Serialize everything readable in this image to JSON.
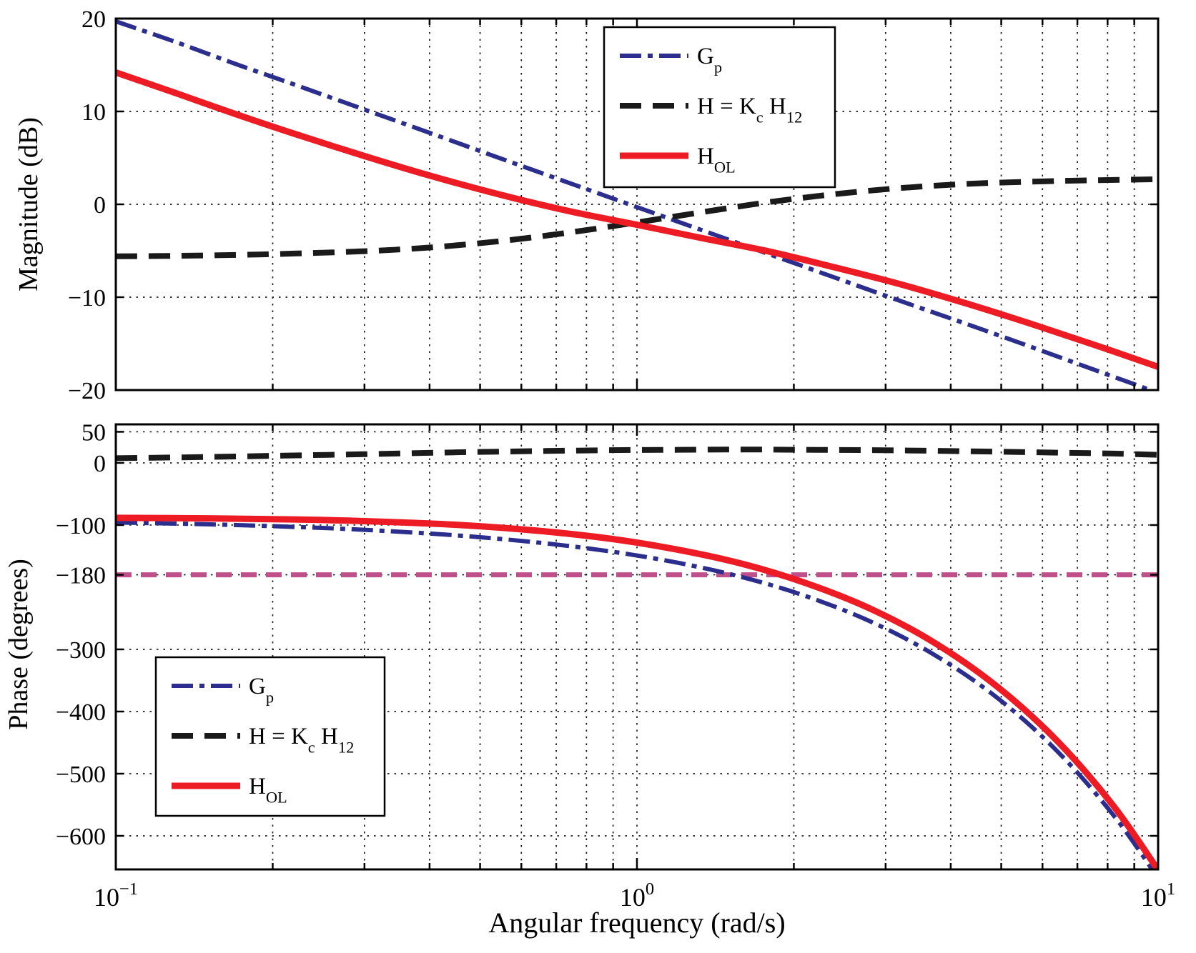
{
  "figure": {
    "bg": "#ffffff",
    "grid_color": "#1a1a1a",
    "axis_color": "#000000",
    "xlabel": "Angular frequency (rad/s)",
    "x_major": [
      {
        "w": 0.1,
        "base": "10",
        "exp": "−1"
      },
      {
        "w": 1,
        "base": "10",
        "exp": "0"
      },
      {
        "w": 10,
        "base": "10",
        "exp": "1"
      }
    ],
    "x_minor": [
      0.2,
      0.3,
      0.4,
      0.5,
      0.6,
      0.7,
      0.8,
      0.9,
      2,
      3,
      4,
      5,
      6,
      7,
      8,
      9
    ],
    "x_grid": [
      0.2,
      0.3,
      0.4,
      0.5,
      0.6,
      0.7,
      0.8,
      0.9,
      1,
      2,
      3,
      4,
      5,
      6,
      7,
      8,
      9
    ]
  },
  "chart_data": [
    {
      "name": "magnitude",
      "type": "line",
      "title": "",
      "xlabel": "",
      "ylabel": "Magnitude (dB)",
      "xscale": "log",
      "xlim": [
        0.1,
        10
      ],
      "ylim": [
        20,
        -20
      ],
      "y_ticks": [
        {
          "v": 20,
          "label": "20"
        },
        {
          "v": 10,
          "label": "10"
        },
        {
          "v": 0,
          "label": "0"
        },
        {
          "v": -10,
          "label": "−10"
        },
        {
          "v": -20,
          "label": "−20"
        }
      ],
      "grid_y": [
        10,
        0,
        -10
      ],
      "legend_position": "upper-right-inside",
      "series": [
        {
          "name": "Gp",
          "label": [
            {
              "t": "G"
            },
            {
              "t": "p",
              "sub": true
            }
          ],
          "color": "#2b2e8c",
          "style": "dashdot",
          "width": 6,
          "x": [
            0.1,
            0.13,
            0.17,
            0.22,
            0.3,
            0.4,
            0.55,
            0.75,
            1.0,
            1.35,
            1.8,
            2.4,
            3.2,
            4.3,
            5.8,
            7.7,
            10
          ],
          "y": [
            19.7,
            17.5,
            15.1,
            12.9,
            10.2,
            7.7,
            4.9,
            2.2,
            -0.3,
            -2.9,
            -5.4,
            -7.9,
            -10.4,
            -12.9,
            -15.5,
            -18.0,
            -20.3
          ]
        },
        {
          "name": "H",
          "label": [
            {
              "t": "H = K"
            },
            {
              "t": "c",
              "sub": true
            },
            {
              "t": " H"
            },
            {
              "t": "12",
              "sub": true
            }
          ],
          "color": "#1a1a1a",
          "style": "dashed",
          "width": 8,
          "x": [
            0.1,
            0.13,
            0.17,
            0.22,
            0.3,
            0.4,
            0.55,
            0.75,
            1.0,
            1.35,
            1.8,
            2.4,
            3.2,
            4.3,
            5.8,
            7.7,
            10
          ],
          "y": [
            -5.6,
            -5.55,
            -5.45,
            -5.3,
            -5.05,
            -4.65,
            -3.95,
            -3.0,
            -1.95,
            -0.8,
            0.25,
            1.1,
            1.75,
            2.2,
            2.45,
            2.6,
            2.7
          ]
        },
        {
          "name": "HOL",
          "label": [
            {
              "t": "H"
            },
            {
              "t": "OL",
              "sub": true
            }
          ],
          "color": "#ed1b24",
          "style": "solid",
          "width": 9,
          "x": [
            0.1,
            0.13,
            0.17,
            0.22,
            0.3,
            0.4,
            0.55,
            0.75,
            1.0,
            1.35,
            1.8,
            2.4,
            3.2,
            4.3,
            5.8,
            7.7,
            10
          ],
          "y": [
            14.2,
            12.0,
            9.7,
            7.6,
            5.2,
            3.1,
            1.0,
            -0.8,
            -2.2,
            -3.7,
            -5.1,
            -6.8,
            -8.6,
            -10.7,
            -13.0,
            -15.3,
            -17.5
          ]
        }
      ]
    },
    {
      "name": "phase",
      "type": "line",
      "title": "",
      "xlabel": "Angular frequency (rad/s)",
      "ylabel": "Phase (degrees)",
      "xscale": "log",
      "xlim": [
        0.1,
        10
      ],
      "ylim": [
        62,
        -654
      ],
      "y_ticks": [
        {
          "v": 50,
          "label": "50"
        },
        {
          "v": 0,
          "label": "0"
        },
        {
          "v": -100,
          "label": "−100"
        },
        {
          "v": -180,
          "label": "−180"
        },
        {
          "v": -300,
          "label": "−300"
        },
        {
          "v": -400,
          "label": "−400"
        },
        {
          "v": -500,
          "label": "−500"
        },
        {
          "v": -600,
          "label": "−600"
        }
      ],
      "grid_y": [
        50,
        0,
        -100,
        -180,
        -300,
        -400,
        -500,
        -600
      ],
      "legend_position": "lower-left-inside",
      "annotations": [
        {
          "type": "hline",
          "name": "minus-180-reference-line",
          "value": -180,
          "color": "#c0508c",
          "style": "refdash",
          "width": 7
        }
      ],
      "series": [
        {
          "name": "Gp",
          "label": [
            {
              "t": "G"
            },
            {
              "t": "p",
              "sub": true
            }
          ],
          "color": "#2b2e8c",
          "style": "dashdot",
          "width": 6,
          "x": [
            0.1,
            0.15,
            0.22,
            0.3,
            0.45,
            0.65,
            0.9,
            1.2,
            1.6,
            2.1,
            2.8,
            3.7,
            4.9,
            6.4,
            8.2,
            10
          ],
          "y": [
            -95.9,
            -98.8,
            -103.0,
            -107.7,
            -116.6,
            -128.4,
            -143.1,
            -160.8,
            -184.3,
            -213.8,
            -254.8,
            -307.5,
            -377.2,
            -463.6,
            -566.3,
            -667.9
          ]
        },
        {
          "name": "H",
          "label": [
            {
              "t": "H = K"
            },
            {
              "t": "c",
              "sub": true
            },
            {
              "t": " H"
            },
            {
              "t": "12",
              "sub": true
            }
          ],
          "color": "#1a1a1a",
          "style": "dashed",
          "width": 8,
          "x": [
            0.1,
            0.15,
            0.22,
            0.3,
            0.45,
            0.65,
            0.9,
            1.2,
            1.6,
            2.1,
            2.8,
            3.7,
            4.9,
            6.4,
            8.2,
            10
          ],
          "y": [
            7.5,
            9.5,
            12.0,
            14.0,
            17.0,
            19.0,
            20.5,
            21.0,
            21.5,
            21.0,
            20.5,
            19.5,
            18.0,
            16.5,
            15.0,
            13.0
          ]
        },
        {
          "name": "HOL",
          "label": [
            {
              "t": "H"
            },
            {
              "t": "OL",
              "sub": true
            }
          ],
          "color": "#ed1b24",
          "style": "solid",
          "width": 9,
          "x": [
            0.1,
            0.15,
            0.22,
            0.3,
            0.45,
            0.65,
            0.9,
            1.2,
            1.6,
            2.1,
            2.8,
            3.7,
            4.9,
            6.4,
            8.2,
            10
          ],
          "y": [
            -88.4,
            -89.3,
            -91.0,
            -93.7,
            -99.6,
            -109.4,
            -122.6,
            -139.8,
            -162.8,
            -192.8,
            -234.3,
            -288.0,
            -359.2,
            -447.1,
            -551.3,
            -654.9
          ]
        }
      ]
    }
  ]
}
